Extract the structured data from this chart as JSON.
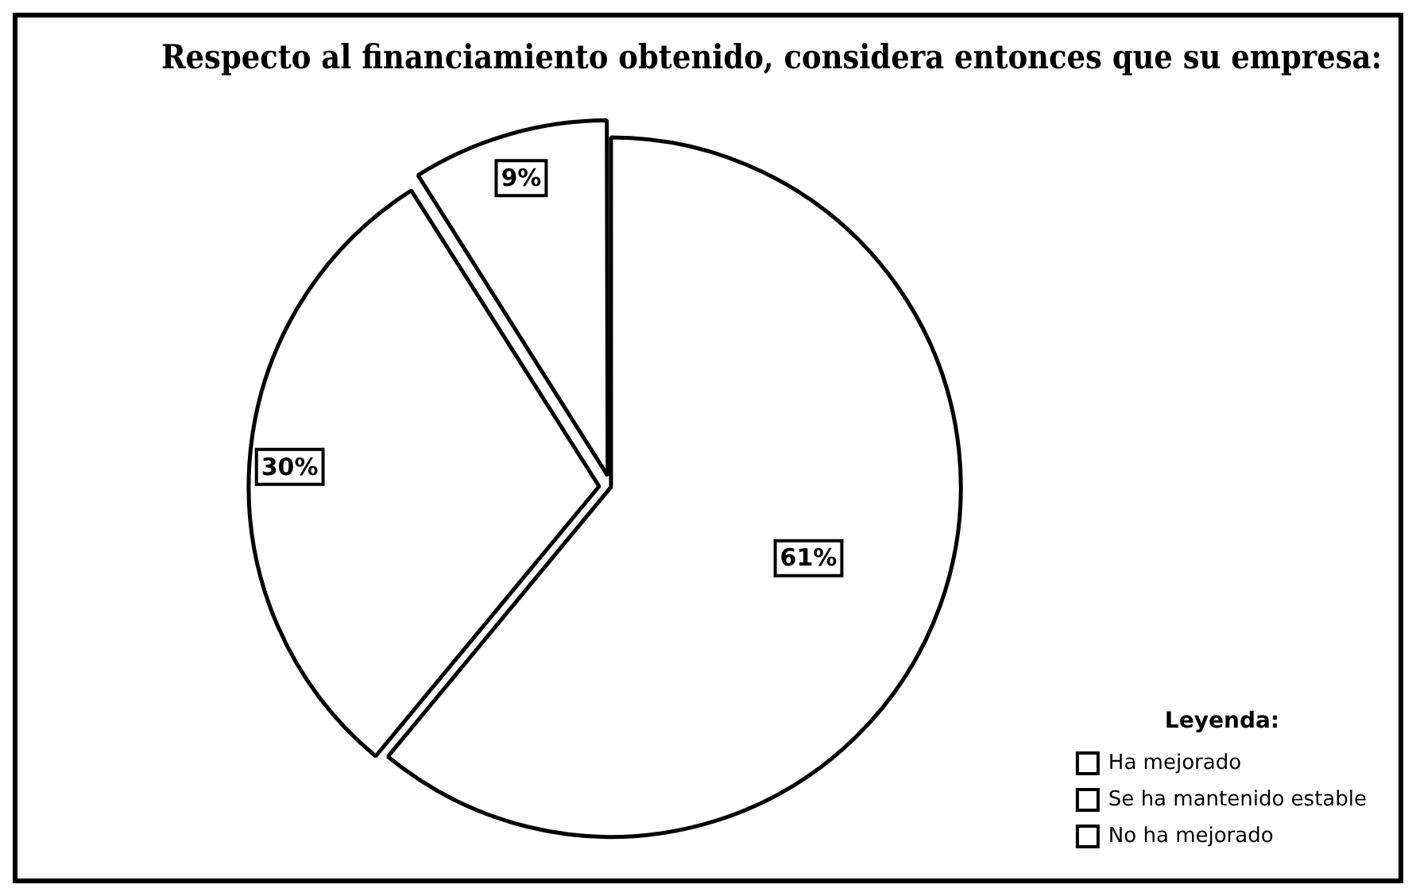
{
  "chart_data": {
    "type": "pie",
    "title": "Respecto al financiamiento obtenido, considera entonces que su empresa:",
    "legend_title": "Leyenda:",
    "categories": [
      "Ha mejorado",
      "Se ha mantenido estable",
      "No ha mejorado"
    ],
    "values": [
      61,
      30,
      9
    ],
    "colors": [
      "#ffffff",
      "#ffffff",
      "#ffffff"
    ],
    "value_labels": [
      "61%",
      "30%",
      "9%"
    ],
    "legend": "bottom right"
  }
}
